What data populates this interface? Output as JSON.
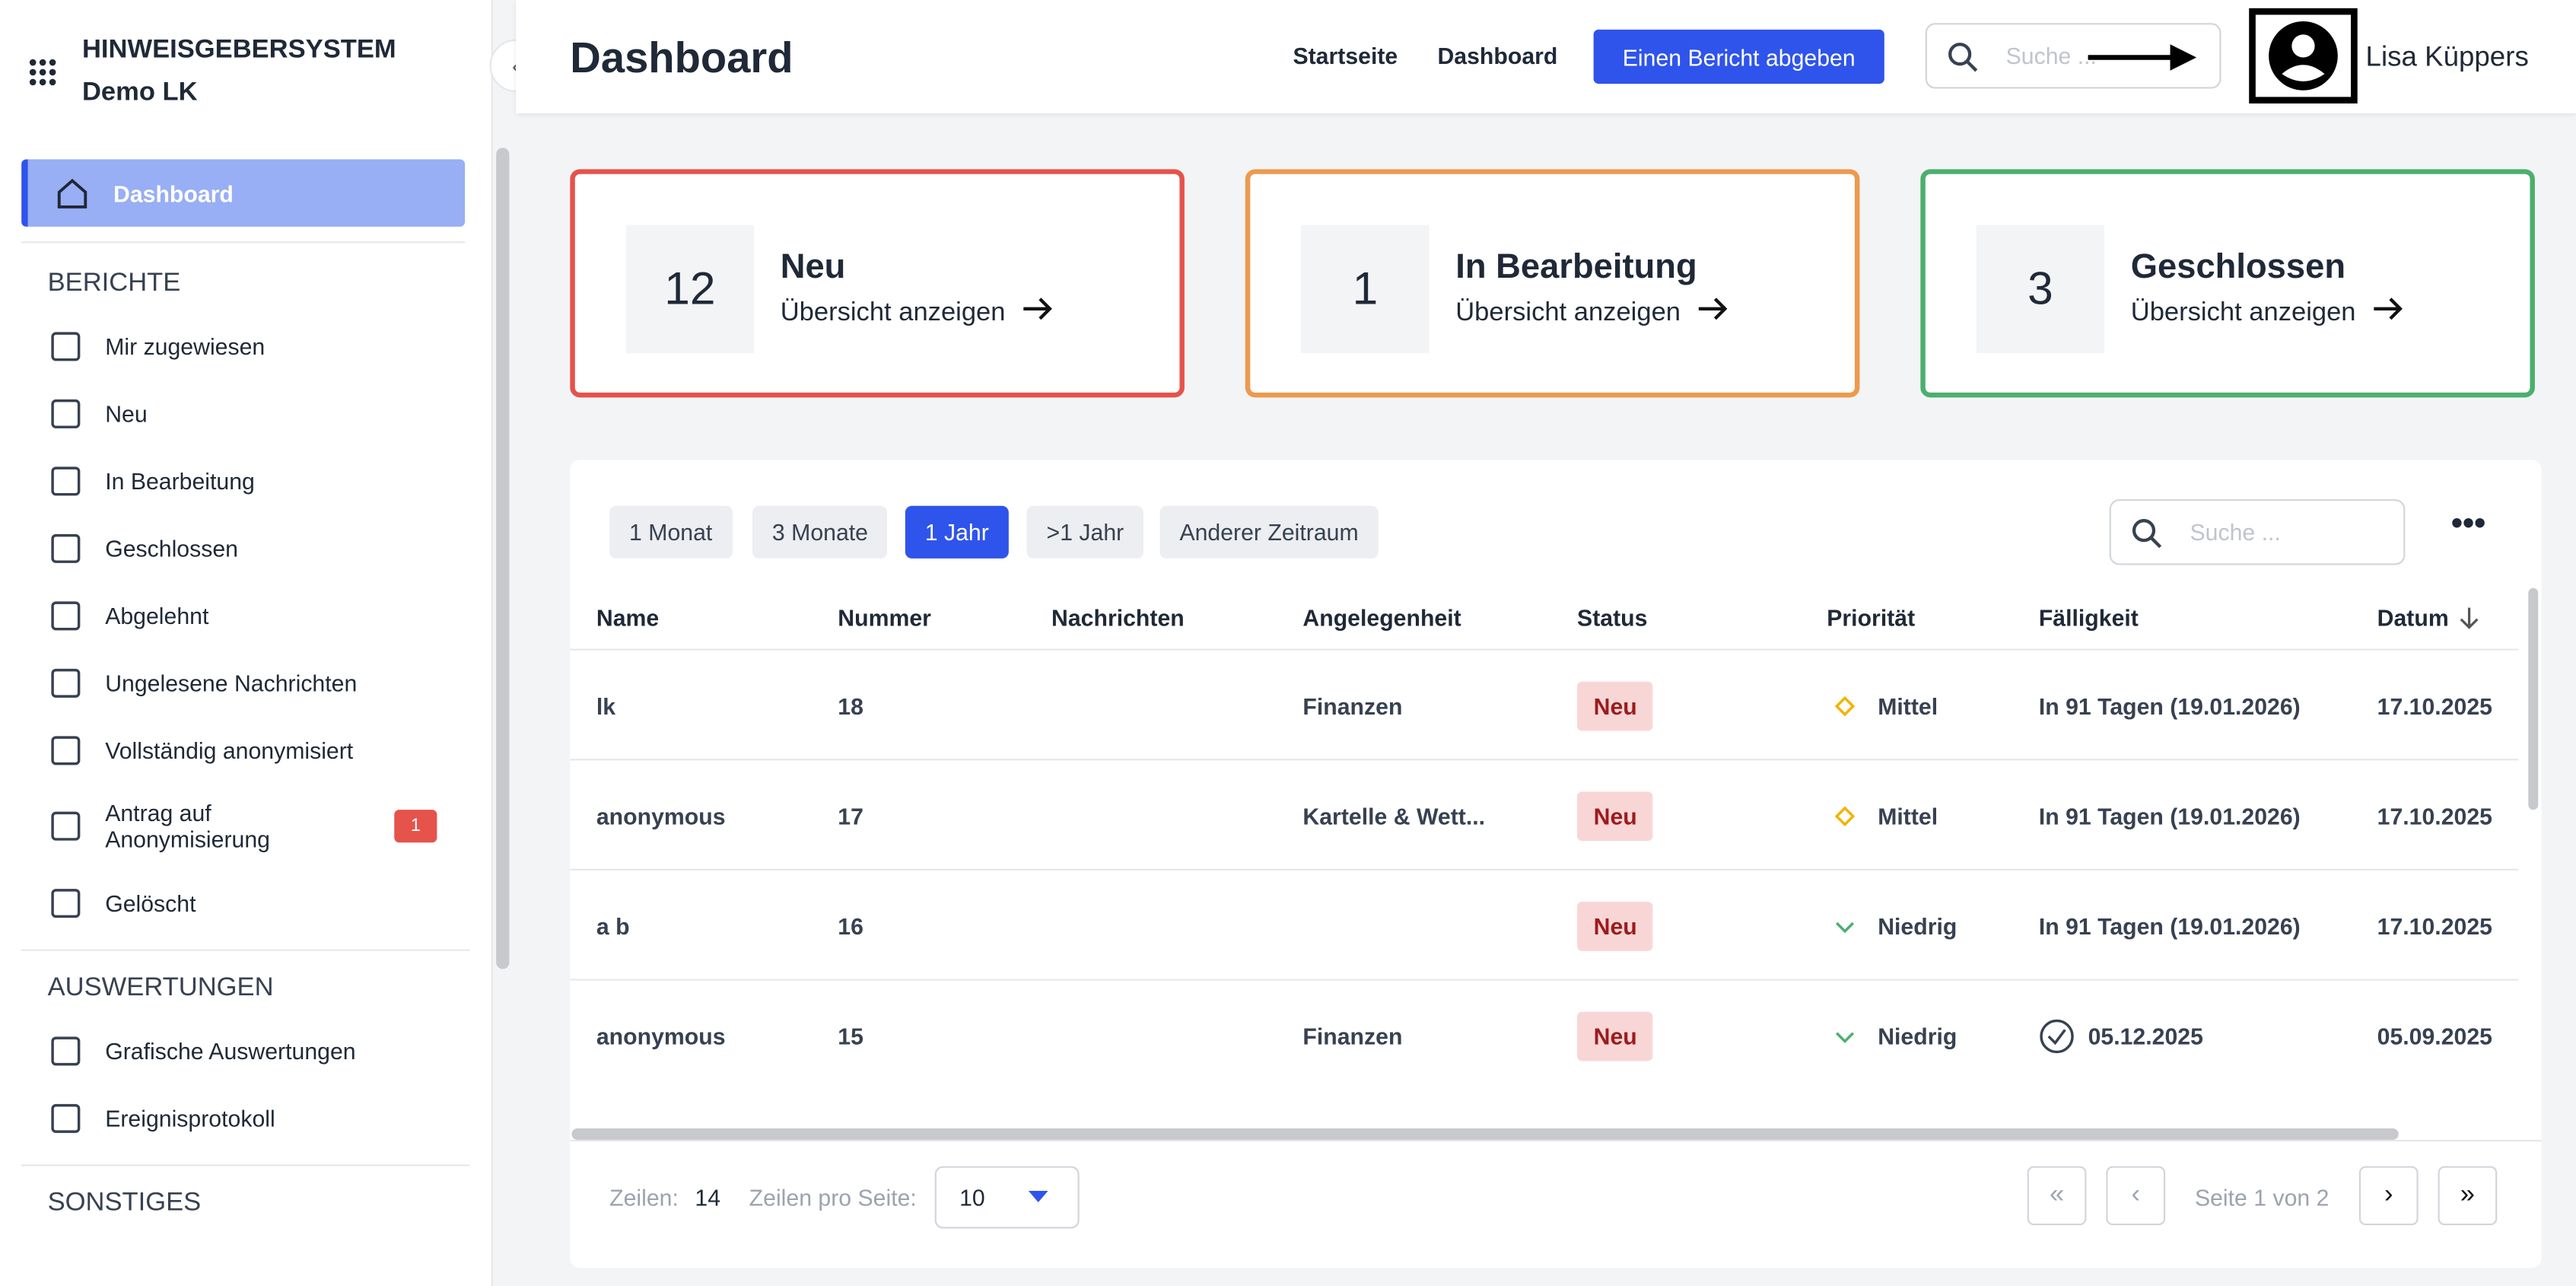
{
  "app": {
    "title": "HINWEISGEBERSYSTEM",
    "subtitle": "Demo LK"
  },
  "sidebar": {
    "active": "Dashboard",
    "sections": [
      {
        "heading": "BERICHTE",
        "items": [
          {
            "label": "Mir zugewiesen"
          },
          {
            "label": "Neu"
          },
          {
            "label": "In Bearbeitung"
          },
          {
            "label": "Geschlossen"
          },
          {
            "label": "Abgelehnt"
          },
          {
            "label": "Ungelesene Nachrichten"
          },
          {
            "label": "Vollständig anonymisiert"
          },
          {
            "label": "Antrag auf Anonymisierung",
            "badge": 1
          },
          {
            "label": "Gelöscht"
          }
        ]
      },
      {
        "heading": "AUSWERTUNGEN",
        "items": [
          {
            "label": "Grafische Auswertungen"
          },
          {
            "label": "Ereignisprotokoll"
          }
        ]
      },
      {
        "heading": "SONSTIGES"
      }
    ]
  },
  "header": {
    "title": "Dashboard",
    "nav": [
      "Startseite",
      "Dashboard"
    ],
    "button": "Einen Bericht abgeben",
    "search_placeholder": "Suche ...",
    "user": "Lisa Küppers"
  },
  "cards": [
    {
      "count": 12,
      "label": "Neu",
      "link": "Übersicht anzeigen",
      "color": "#e5534b"
    },
    {
      "count": 1,
      "label": "In Bearbeitung",
      "link": "Übersicht anzeigen",
      "color": "#ec9a4e"
    },
    {
      "count": 3,
      "label": "Geschlossen",
      "link": "Übersicht anzeigen",
      "color": "#4caf6e"
    }
  ],
  "filters": {
    "options": [
      "1 Monat",
      "3 Monate",
      "1 Jahr",
      ">1 Jahr",
      "Anderer Zeitraum"
    ],
    "active": 2,
    "search_placeholder": "Suche ..."
  },
  "table": {
    "columns": [
      "Name",
      "Nummer",
      "Nachrichten",
      "Angelegenheit",
      "Status",
      "Priorität",
      "Fälligkeit",
      "Datum"
    ],
    "rows": [
      {
        "name": "lk",
        "number": 18,
        "subject": "Finanzen",
        "status": "Neu",
        "priority": "Mittel",
        "priority_icon": "diamond",
        "due": "In 91 Tagen (19.01.2026)",
        "date": "17.10.2025"
      },
      {
        "name": "anonymous",
        "number": 17,
        "subject": "Kartelle & Wett...",
        "status": "Neu",
        "priority": "Mittel",
        "priority_icon": "diamond",
        "due": "In 91 Tagen (19.01.2026)",
        "date": "17.10.2025"
      },
      {
        "name": "a b",
        "number": 16,
        "status": "Neu",
        "priority": "Niedrig",
        "priority_icon": "chevron",
        "due": "In 91 Tagen (19.01.2026)",
        "date": "17.10.2025"
      },
      {
        "name": "anonymous",
        "number": 15,
        "subject": "Finanzen",
        "status": "Neu",
        "priority": "Niedrig",
        "priority_icon": "chevron",
        "due": "05.12.2025",
        "due_done": true,
        "date": "05.09.2025"
      }
    ]
  },
  "pagination": {
    "rows_label": "Zeilen:",
    "rows_count": 14,
    "per_page_label": "Zeilen pro Seite:",
    "per_page": 10,
    "page_text": "Seite 1 von 2"
  }
}
